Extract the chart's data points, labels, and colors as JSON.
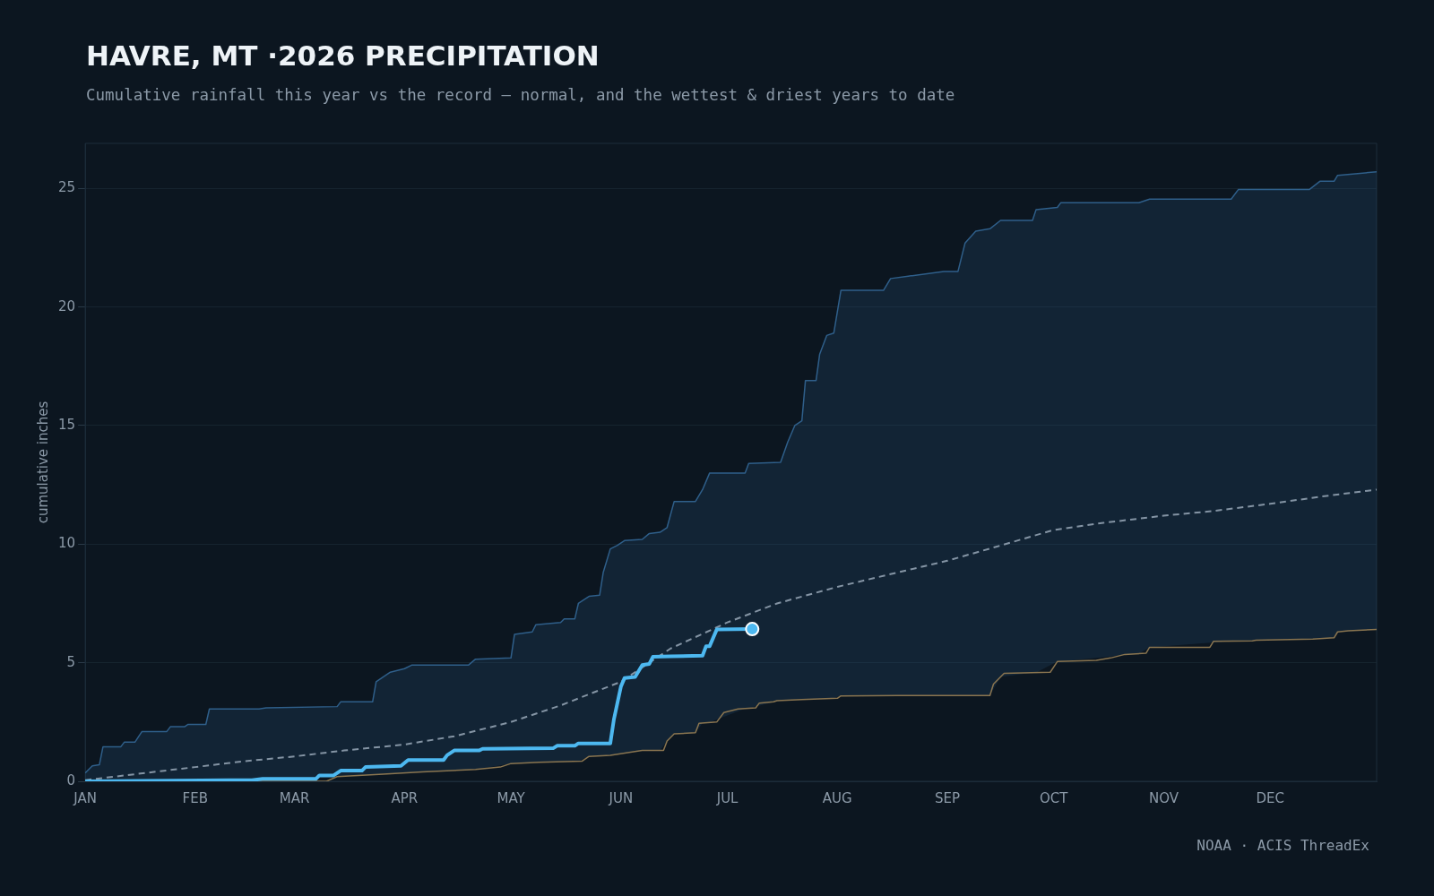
{
  "chart_data": {
    "type": "line",
    "title": "HAVRE, MT ·2026 PRECIPITATION",
    "subtitle": "Cumulative rainfall this year vs the record — normal, and the wettest & driest years to date",
    "ylabel": "cumulative inches",
    "annotations": [
      "NOAA · ACIS ThreadEx"
    ],
    "xlim": [
      "2026-01-01",
      "2026-12-31"
    ],
    "xticks": [
      {
        "value": "2026-01-01",
        "label": "JAN"
      },
      {
        "value": "2026-02-01",
        "label": "FEB"
      },
      {
        "value": "2026-03-01",
        "label": "MAR"
      },
      {
        "value": "2026-04-01",
        "label": "APR"
      },
      {
        "value": "2026-05-01",
        "label": "MAY"
      },
      {
        "value": "2026-06-01",
        "label": "JUN"
      },
      {
        "value": "2026-07-01",
        "label": "JUL"
      },
      {
        "value": "2026-08-01",
        "label": "AUG"
      },
      {
        "value": "2026-09-01",
        "label": "SEP"
      },
      {
        "value": "2026-10-01",
        "label": "OCT"
      },
      {
        "value": "2026-11-01",
        "label": "NOV"
      },
      {
        "value": "2026-12-01",
        "label": "DEC"
      }
    ],
    "ylim": [
      0,
      26.9
    ],
    "yticks": [
      0,
      5,
      10,
      15,
      20,
      25
    ],
    "grid": "y",
    "legend": false,
    "marker": "none",
    "series": [
      {
        "type": "line",
        "color": "#2f5f8a",
        "lower": [
          0,
          0,
          0,
          0,
          0,
          0,
          0,
          0,
          0,
          0,
          0,
          0,
          0,
          0,
          0,
          0,
          0.2,
          0.21,
          0.28,
          0.28,
          0.32,
          0.35,
          0.37,
          0.49,
          0.5,
          0.75,
          0.76,
          0.79,
          0.8,
          0.82,
          0.83,
          0.84,
          0.84,
          1.05,
          1.08,
          1.08,
          1.1,
          1.14,
          1.19,
          1.3,
          1.3,
          1.3,
          1.7,
          2.0,
          2.05,
          2.46,
          2.48,
          3.07,
          3.08,
          3.41,
          3.42,
          3.44,
          3.45,
          3.46,
          3.47,
          3.48,
          3.49,
          3.5,
          3.6,
          3.6,
          3.6,
          3.62,
          3.62,
          3.62,
          3.62,
          3.62,
          3.62,
          4.4,
          4.58,
          4.58,
          5.05,
          5.05,
          5.38,
          5.65,
          5.91,
          5.91,
          6.0,
          6.02,
          6.05,
          6.3,
          6.4
        ],
        "upper": [
          0.35,
          0.65,
          0.7,
          1.45,
          1.45,
          1.65,
          1.65,
          2.1,
          2.1,
          2.3,
          2.3,
          2.4,
          2.4,
          3.05,
          3.05,
          3.1,
          3.15,
          3.35,
          3.35,
          4.2,
          4.6,
          4.75,
          4.9,
          4.9,
          5.15,
          5.2,
          6.2,
          6.3,
          6.6,
          6.7,
          6.85,
          6.85,
          7.5,
          7.8,
          7.85,
          8.8,
          9.8,
          9.95,
          10.15,
          10.2,
          10.45,
          10.5,
          10.7,
          11.8,
          11.8,
          12.3,
          13.0,
          13.0,
          13.4,
          13.45,
          14.3,
          15.0,
          15.2,
          16.9,
          16.9,
          18.0,
          18.8,
          18.9,
          20.7,
          20.7,
          21.2,
          21.3,
          21.5,
          21.5,
          22.7,
          23.2,
          23.3,
          23.65,
          23.65,
          24.1,
          24.2,
          24.4,
          24.4,
          24.55,
          24.55,
          24.95,
          24.95,
          25.3,
          25.3,
          25.55,
          25.7
        ],
        "x": [
          "2026-01-01",
          "2026-01-03",
          "2026-01-05",
          "2026-01-06",
          "2026-01-11",
          "2026-01-12",
          "2026-01-15",
          "2026-01-17",
          "2026-01-24",
          "2026-01-25",
          "2026-01-29",
          "2026-01-30",
          "2026-02-04",
          "2026-02-05",
          "2026-02-19",
          "2026-02-21",
          "2026-03-13",
          "2026-03-14",
          "2026-03-23",
          "2026-03-24",
          "2026-03-28",
          "2026-04-01",
          "2026-04-03",
          "2026-04-19",
          "2026-04-21",
          "2026-05-01",
          "2026-05-02",
          "2026-05-07",
          "2026-05-08",
          "2026-05-15",
          "2026-05-16",
          "2026-05-19",
          "2026-05-20",
          "2026-05-23",
          "2026-05-26",
          "2026-05-27",
          "2026-05-29",
          "2026-05-31",
          "2026-06-02",
          "2026-06-07",
          "2026-06-09",
          "2026-06-12",
          "2026-06-14",
          "2026-06-16",
          "2026-06-22",
          "2026-06-24",
          "2026-06-26",
          "2026-07-06",
          "2026-07-07",
          "2026-07-16",
          "2026-07-18",
          "2026-07-20",
          "2026-07-22",
          "2026-07-23",
          "2026-07-26",
          "2026-07-27",
          "2026-07-29",
          "2026-07-31",
          "2026-08-02",
          "2026-08-14",
          "2026-08-16",
          "2026-08-21",
          "2026-08-31",
          "2026-09-04",
          "2026-09-06",
          "2026-09-09",
          "2026-09-13",
          "2026-09-16",
          "2026-09-25",
          "2026-09-26",
          "2026-10-02",
          "2026-10-03",
          "2026-10-25",
          "2026-10-28",
          "2026-11-20",
          "2026-11-22",
          "2026-12-12",
          "2026-12-15",
          "2026-12-19",
          "2026-12-20",
          "2026-12-31"
        ],
        "values": [
          0.35,
          0.65,
          0.7,
          1.45,
          1.45,
          1.65,
          1.65,
          2.1,
          2.1,
          2.3,
          2.3,
          2.4,
          2.4,
          3.05,
          3.05,
          3.1,
          3.15,
          3.35,
          3.35,
          4.2,
          4.6,
          4.75,
          4.9,
          4.9,
          5.15,
          5.2,
          6.2,
          6.3,
          6.6,
          6.7,
          6.85,
          6.85,
          7.5,
          7.8,
          7.85,
          8.8,
          9.8,
          9.95,
          10.15,
          10.2,
          10.45,
          10.5,
          10.7,
          11.8,
          11.8,
          12.3,
          13.0,
          13.0,
          13.4,
          13.45,
          14.3,
          15.0,
          15.2,
          16.9,
          16.9,
          18.0,
          18.8,
          18.9,
          20.7,
          20.7,
          21.2,
          21.3,
          21.5,
          21.5,
          22.7,
          23.2,
          23.3,
          23.65,
          23.65,
          24.1,
          24.2,
          24.4,
          24.4,
          24.55,
          24.55,
          24.95,
          24.95,
          25.3,
          25.3,
          25.55,
          25.7
        ]
      },
      {
        "type": "line",
        "color": "#8a7550",
        "x": [
          "2026-01-01",
          "2026-03-10",
          "2026-03-13",
          "2026-03-26",
          "2026-04-06",
          "2026-04-21",
          "2026-04-28",
          "2026-05-01",
          "2026-05-09",
          "2026-05-21",
          "2026-05-23",
          "2026-05-29",
          "2026-06-07",
          "2026-06-13",
          "2026-06-14",
          "2026-06-16",
          "2026-06-22",
          "2026-06-23",
          "2026-06-28",
          "2026-06-30",
          "2026-07-04",
          "2026-07-09",
          "2026-07-10",
          "2026-07-14",
          "2026-07-15",
          "2026-07-22",
          "2026-08-01",
          "2026-08-02",
          "2026-08-18",
          "2026-09-13",
          "2026-09-14",
          "2026-09-17",
          "2026-09-30",
          "2026-10-02",
          "2026-10-13",
          "2026-10-17",
          "2026-10-21",
          "2026-10-27",
          "2026-10-28",
          "2026-11-14",
          "2026-11-15",
          "2026-11-26",
          "2026-11-27",
          "2026-12-13",
          "2026-12-19",
          "2026-12-20",
          "2026-12-23",
          "2026-12-31"
        ],
        "values": [
          0,
          0,
          0.2,
          0.3,
          0.4,
          0.5,
          0.6,
          0.75,
          0.8,
          0.85,
          1.05,
          1.1,
          1.3,
          1.3,
          1.7,
          2.0,
          2.05,
          2.45,
          2.5,
          2.9,
          3.05,
          3.1,
          3.3,
          3.35,
          3.4,
          3.45,
          3.5,
          3.6,
          3.62,
          3.62,
          4.1,
          4.55,
          4.6,
          5.05,
          5.1,
          5.2,
          5.35,
          5.4,
          5.65,
          5.65,
          5.9,
          5.92,
          5.95,
          6.0,
          6.05,
          6.3,
          6.35,
          6.4
        ]
      },
      {
        "type": "line",
        "color": "#8494a4",
        "line_style": "dashed",
        "x": [
          "2026-01-01",
          "2026-01-15",
          "2026-02-01",
          "2026-02-15",
          "2026-03-01",
          "2026-03-15",
          "2026-04-01",
          "2026-04-15",
          "2026-05-01",
          "2026-05-15",
          "2026-06-01",
          "2026-06-15",
          "2026-07-01",
          "2026-07-15",
          "2026-08-01",
          "2026-08-15",
          "2026-09-01",
          "2026-09-15",
          "2026-10-01",
          "2026-10-15",
          "2026-11-01",
          "2026-11-15",
          "2026-12-01",
          "2026-12-15",
          "2026-12-31"
        ],
        "values": [
          0.05,
          0.3,
          0.6,
          0.85,
          1.05,
          1.3,
          1.55,
          1.9,
          2.5,
          3.2,
          4.2,
          5.6,
          6.7,
          7.5,
          8.2,
          8.7,
          9.3,
          9.9,
          10.6,
          10.9,
          11.2,
          11.4,
          11.7,
          12.0,
          12.3
        ]
      },
      {
        "type": "line",
        "color": "#4db8f0",
        "x": [
          "2026-01-01",
          "2026-02-17",
          "2026-02-20",
          "2026-03-07",
          "2026-03-08",
          "2026-03-12",
          "2026-03-14",
          "2026-03-20",
          "2026-03-21",
          "2026-03-31",
          "2026-04-02",
          "2026-04-12",
          "2026-04-13",
          "2026-04-15",
          "2026-04-22",
          "2026-04-23",
          "2026-05-13",
          "2026-05-14",
          "2026-05-19",
          "2026-05-20",
          "2026-05-29",
          "2026-05-30",
          "2026-06-01",
          "2026-06-02",
          "2026-06-05",
          "2026-06-07",
          "2026-06-09",
          "2026-06-10",
          "2026-06-15",
          "2026-06-24",
          "2026-06-25",
          "2026-06-26",
          "2026-06-28",
          "2026-07-08"
        ],
        "values": [
          0,
          0.05,
          0.1,
          0.1,
          0.25,
          0.25,
          0.45,
          0.45,
          0.6,
          0.65,
          0.9,
          0.9,
          1.1,
          1.3,
          1.3,
          1.37,
          1.4,
          1.5,
          1.5,
          1.6,
          1.6,
          2.6,
          4.0,
          4.35,
          4.4,
          4.9,
          4.95,
          5.25,
          5.27,
          5.3,
          5.7,
          5.7,
          6.4,
          6.42
        ]
      },
      {
        "type": "scatter",
        "color": "#4db8f0",
        "marker": "circle",
        "x": [
          "2026-07-08"
        ],
        "values": [
          6.42
        ]
      }
    ]
  }
}
